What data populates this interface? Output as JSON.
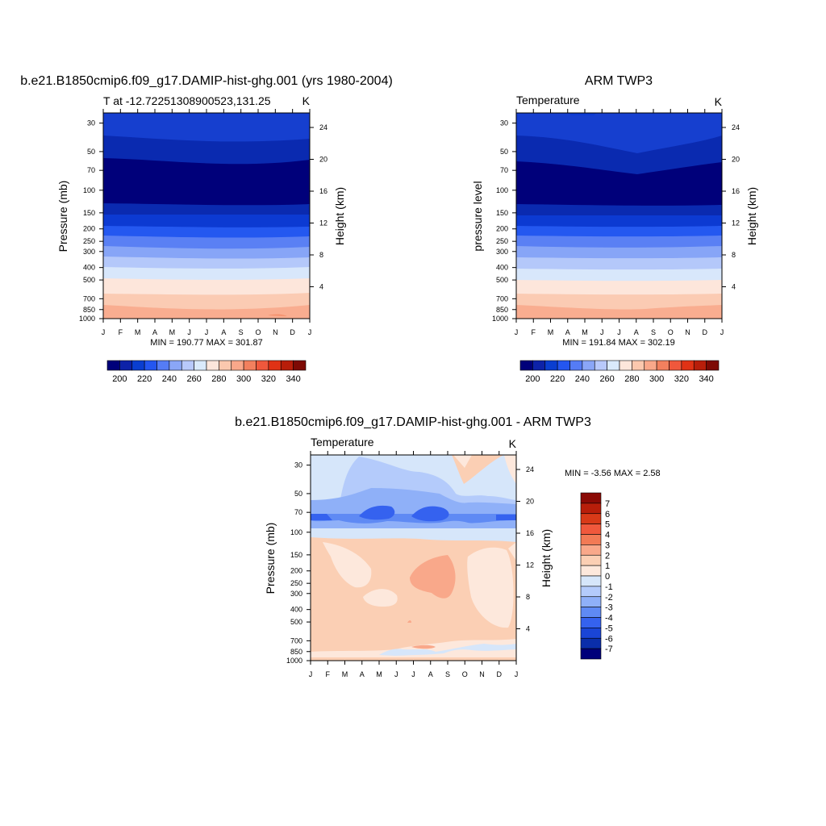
{
  "panels": [
    {
      "title": "b.e21.B1850cmip6.f09_g17.DAMIP-hist-ghg.001 (yrs 1980-2004)",
      "left_label": "T at -12.72251308900523,131.25",
      "right_label": "K",
      "ylabel_left": "Pressure (mb)",
      "ylabel_right": "Height (km)",
      "stats": "MIN = 190.77 MAX = 301.87"
    },
    {
      "title": "ARM TWP3",
      "left_label": "Temperature",
      "right_label": "K",
      "ylabel_left": "pressure level",
      "ylabel_right": "Height (km)",
      "stats": "MIN = 191.84 MAX = 302.19"
    },
    {
      "title": "b.e21.B1850cmip6.f09_g17.DAMIP-hist-ghg.001 - ARM TWP3",
      "left_label": "Temperature",
      "right_label": "K",
      "ylabel_left": "Pressure (mb)",
      "ylabel_right": "Height (km)",
      "stats": "MIN =  -3.56 MAX =   2.58"
    }
  ],
  "chart_data": [
    {
      "type": "heatmap",
      "title": "b.e21.B1850cmip6.f09_g17.DAMIP-hist-ghg.001 (yrs 1980-2004)",
      "variable": "T at -12.72251308900523,131.25",
      "units": "K",
      "xlabel": "",
      "ylabel": "Pressure (mb)",
      "ylabel_right": "Height (km)",
      "x_ticks": [
        "J",
        "F",
        "M",
        "A",
        "M",
        "J",
        "J",
        "A",
        "S",
        "O",
        "N",
        "D",
        "J"
      ],
      "y_ticks": [
        30,
        50,
        70,
        100,
        150,
        200,
        250,
        300,
        400,
        500,
        700,
        850,
        1000
      ],
      "y_scale": "log",
      "ylim": [
        1000,
        25
      ],
      "height_ticks": [
        4,
        8,
        12,
        16,
        20,
        24
      ],
      "min": 190.77,
      "max": 301.87,
      "contour_levels": [
        195,
        200,
        210,
        220,
        230,
        240,
        250,
        260,
        270,
        280,
        290,
        295
      ],
      "profile_pressure": [
        25,
        40,
        60,
        80,
        110,
        140,
        180,
        230,
        280,
        350,
        450,
        600,
        780,
        950,
        1000
      ],
      "profile_temperature": [
        225,
        212,
        198,
        195,
        196,
        208,
        222,
        234,
        245,
        256,
        267,
        280,
        288,
        295,
        298
      ],
      "colorbar": {
        "labels": [
          "200",
          "220",
          "240",
          "260",
          "280",
          "300",
          "320",
          "340"
        ],
        "colors": [
          "#00007a",
          "#0d22a8",
          "#0a3ed0",
          "#2456f0",
          "#557cf5",
          "#8aa6f7",
          "#b8c9fb",
          "#daeafb",
          "#fde6db",
          "#fbc8ae",
          "#f9a88a",
          "#f2805e",
          "#f0583c",
          "#e03215",
          "#b81e0a",
          "#7e0a04"
        ]
      }
    },
    {
      "type": "heatmap",
      "title": "ARM TWP3",
      "variable": "Temperature",
      "units": "K",
      "xlabel": "",
      "ylabel": "pressure level",
      "ylabel_right": "Height (km)",
      "x_ticks": [
        "J",
        "F",
        "M",
        "A",
        "M",
        "J",
        "J",
        "A",
        "S",
        "O",
        "N",
        "D",
        "J"
      ],
      "y_ticks": [
        30,
        50,
        70,
        100,
        150,
        200,
        250,
        300,
        400,
        500,
        700,
        850,
        1000
      ],
      "y_scale": "log",
      "ylim": [
        1000,
        25
      ],
      "height_ticks": [
        4,
        8,
        12,
        16,
        20,
        24
      ],
      "min": 191.84,
      "max": 302.19,
      "contour_levels": [
        195,
        200,
        210,
        220,
        230,
        240,
        250,
        260,
        270,
        280,
        290,
        295
      ],
      "profile_pressure": [
        25,
        40,
        60,
        80,
        110,
        140,
        180,
        230,
        280,
        350,
        450,
        600,
        780,
        950,
        1000
      ],
      "profile_temperature": [
        225,
        213,
        197,
        194,
        196,
        207,
        222,
        234,
        245,
        257,
        268,
        280,
        289,
        296,
        299
      ],
      "colorbar": {
        "labels": [
          "200",
          "220",
          "240",
          "260",
          "280",
          "300",
          "320",
          "340"
        ],
        "colors": [
          "#00007a",
          "#0d22a8",
          "#0a3ed0",
          "#2456f0",
          "#557cf5",
          "#8aa6f7",
          "#b8c9fb",
          "#daeafb",
          "#fde6db",
          "#fbc8ae",
          "#f9a88a",
          "#f2805e",
          "#f0583c",
          "#e03215",
          "#b81e0a",
          "#7e0a04"
        ]
      }
    },
    {
      "type": "heatmap",
      "title": "b.e21.B1850cmip6.f09_g17.DAMIP-hist-ghg.001 - ARM TWP3",
      "variable": "Temperature",
      "units": "K",
      "xlabel": "",
      "ylabel": "Pressure (mb)",
      "ylabel_right": "Height (km)",
      "x_ticks": [
        "J",
        "F",
        "M",
        "A",
        "M",
        "J",
        "J",
        "A",
        "S",
        "O",
        "N",
        "D",
        "J"
      ],
      "y_ticks": [
        30,
        50,
        70,
        100,
        150,
        200,
        250,
        300,
        400,
        500,
        700,
        850,
        1000
      ],
      "y_scale": "log",
      "ylim": [
        1000,
        25
      ],
      "height_ticks": [
        4,
        8,
        12,
        16,
        20,
        24
      ],
      "min": -3.56,
      "max": 2.58,
      "contour_levels": [
        -7,
        -6,
        -5,
        -4,
        -3,
        -2,
        -1,
        0,
        1,
        2,
        3,
        4,
        5,
        6,
        7
      ],
      "colorbar": {
        "labels": [
          "7",
          "6",
          "5",
          "4",
          "3",
          "2",
          "1",
          "0",
          "-1",
          "-2",
          "-3",
          "-4",
          "-5",
          "-6",
          "-7"
        ],
        "colors": [
          "#8b0a05",
          "#b81e0a",
          "#d83a18",
          "#f0583c",
          "#f27a55",
          "#f9a88a",
          "#fbcfb4",
          "#fde8dc",
          "#d6e6fa",
          "#b4cbfb",
          "#8fb0f8",
          "#5f8af4",
          "#3562ef",
          "#1a45d6",
          "#0a2eaa",
          "#00007a"
        ]
      }
    }
  ]
}
